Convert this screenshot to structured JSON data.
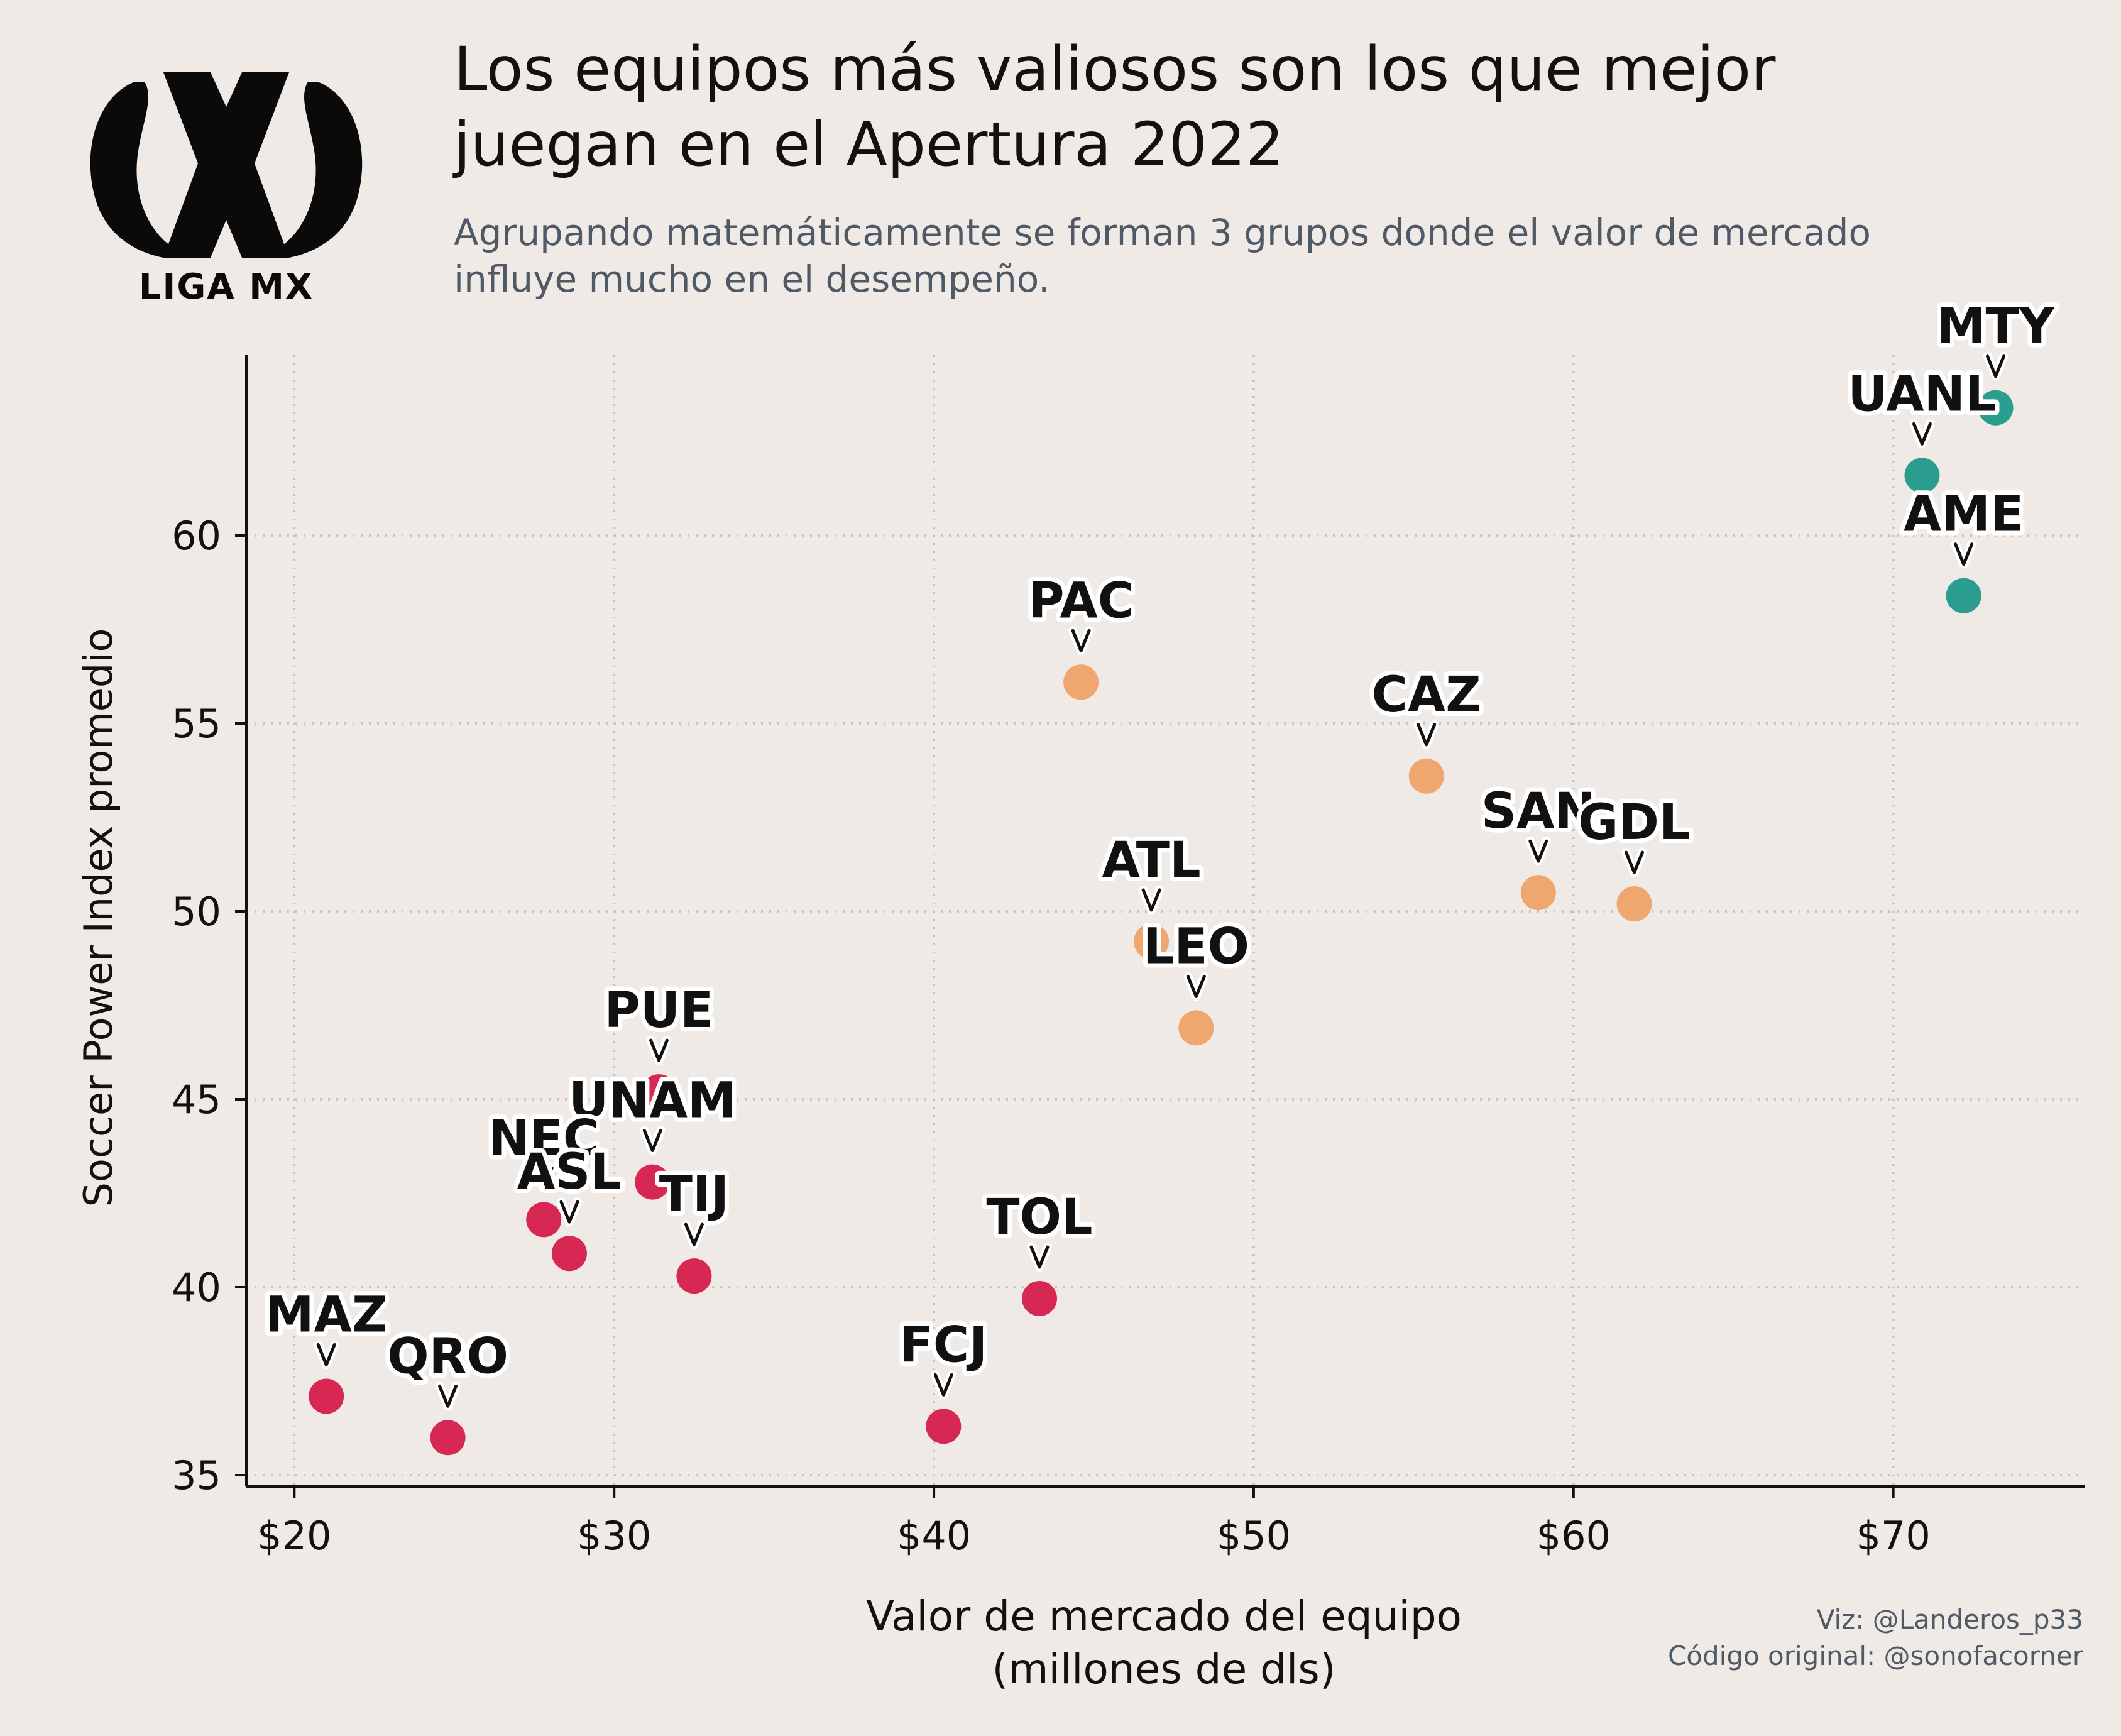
{
  "header": {
    "title_lines": [
      "Los equipos más valiosos son los que mejor",
      "juegan en el Apertura 2022"
    ],
    "subtitle_lines": [
      "Agrupando matemáticamente se forman 3 grupos donde el valor de mercado",
      "influye mucho en el desempeño."
    ],
    "logo_text": "LIGA MX"
  },
  "credits": {
    "line1": "Viz: @Landeros_p33",
    "line2": "Código original: @sonofacorner"
  },
  "colors": {
    "background": "#efeae6",
    "group_top": "#2a9d8f",
    "group_mid": "#efa66f",
    "group_low": "#d62853",
    "text": "#111111",
    "grid": "#c9c4c0"
  },
  "chart_data": {
    "type": "scatter",
    "xlabel_lines": [
      "Valor de mercado del equipo",
      "(millones de dls)"
    ],
    "ylabel": "Soccer Power Index promedio",
    "xlim": [
      18.5,
      76
    ],
    "ylim": [
      34.7,
      64.8
    ],
    "xticks": [
      20,
      30,
      40,
      50,
      60,
      70
    ],
    "xtick_labels": [
      "$20",
      "$30",
      "$40",
      "$50",
      "$60",
      "$70"
    ],
    "yticks": [
      35,
      40,
      45,
      50,
      55,
      60
    ],
    "ytick_labels": [
      "35",
      "40",
      "45",
      "50",
      "55",
      "60"
    ],
    "grid": true,
    "points": [
      {
        "team": "MTY",
        "x": 73.2,
        "y": 63.4,
        "group": "top"
      },
      {
        "team": "UANL",
        "x": 70.9,
        "y": 61.6,
        "group": "top"
      },
      {
        "team": "AME",
        "x": 72.2,
        "y": 58.4,
        "group": "top"
      },
      {
        "team": "PAC",
        "x": 44.6,
        "y": 56.1,
        "group": "mid"
      },
      {
        "team": "CAZ",
        "x": 55.4,
        "y": 53.6,
        "group": "mid"
      },
      {
        "team": "SAN",
        "x": 58.9,
        "y": 50.5,
        "group": "mid"
      },
      {
        "team": "GDL",
        "x": 61.9,
        "y": 50.2,
        "group": "mid"
      },
      {
        "team": "ATL",
        "x": 46.8,
        "y": 49.2,
        "group": "mid"
      },
      {
        "team": "LEO",
        "x": 48.2,
        "y": 46.9,
        "group": "mid"
      },
      {
        "team": "PUE",
        "x": 31.4,
        "y": 45.2,
        "group": "low"
      },
      {
        "team": "UNAM",
        "x": 31.2,
        "y": 42.8,
        "group": "low"
      },
      {
        "team": "NEC",
        "x": 27.8,
        "y": 41.8,
        "group": "low"
      },
      {
        "team": "ASL",
        "x": 28.6,
        "y": 40.9,
        "group": "low"
      },
      {
        "team": "TIJ",
        "x": 32.5,
        "y": 40.3,
        "group": "low"
      },
      {
        "team": "TOL",
        "x": 43.3,
        "y": 39.7,
        "group": "low"
      },
      {
        "team": "MAZ",
        "x": 21.0,
        "y": 37.1,
        "group": "low"
      },
      {
        "team": "QRO",
        "x": 24.8,
        "y": 36.0,
        "group": "low"
      },
      {
        "team": "FCJ",
        "x": 40.3,
        "y": 36.3,
        "group": "low"
      }
    ]
  }
}
